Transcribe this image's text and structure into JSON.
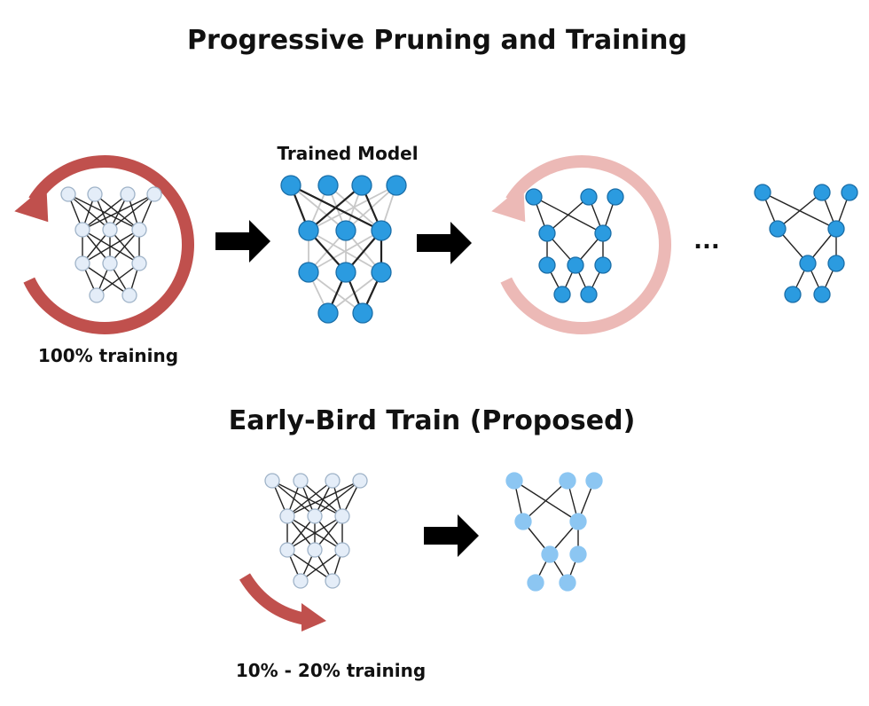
{
  "title": "Progressive Pruning and Training",
  "trained_model_label": "Trained Model",
  "full_training_label": "100% training",
  "ellipsis": "...",
  "proposed_title": "Early-Bird Train (Proposed)",
  "partial_training_label": "10% - 20% training",
  "colors": {
    "proposed_title": "#1f6fb8",
    "node_untrained": "#e4edf8",
    "node_untrained_stroke": "#9fb3c8",
    "node_trained": "#2b9be0",
    "node_trained_stroke": "#1a6ea8",
    "node_early_bird": "#8cc6f2",
    "cycle_arrow": "#c0504d",
    "cycle_arrow_faded": "#ecb9b6",
    "step_arrow": "#000000"
  }
}
